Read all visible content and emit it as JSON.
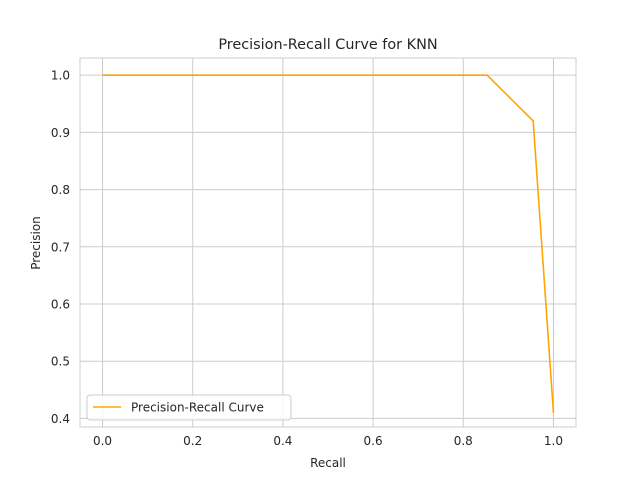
{
  "chart_data": {
    "type": "line",
    "title": "Precision-Recall Curve for KNN",
    "xlabel": "Recall",
    "ylabel": "Precision",
    "xlim": [
      -0.05,
      1.05
    ],
    "ylim": [
      0.385,
      1.03
    ],
    "xticks": [
      0.0,
      0.2,
      0.4,
      0.6,
      0.8,
      1.0
    ],
    "xtick_labels": [
      "0.0",
      "0.2",
      "0.4",
      "0.6",
      "0.8",
      "1.0"
    ],
    "yticks": [
      0.4,
      0.5,
      0.6,
      0.7,
      0.8,
      0.9,
      1.0
    ],
    "ytick_labels": [
      "0.4",
      "0.5",
      "0.6",
      "0.7",
      "0.8",
      "0.9",
      "1.0"
    ],
    "grid": true,
    "legend_position": "lower-left",
    "series": [
      {
        "name": "Precision-Recall Curve",
        "color": "#ffa500",
        "x": [
          0.0,
          0.853,
          0.955,
          1.0
        ],
        "y": [
          1.0,
          1.0,
          0.92,
          0.41
        ]
      }
    ]
  }
}
